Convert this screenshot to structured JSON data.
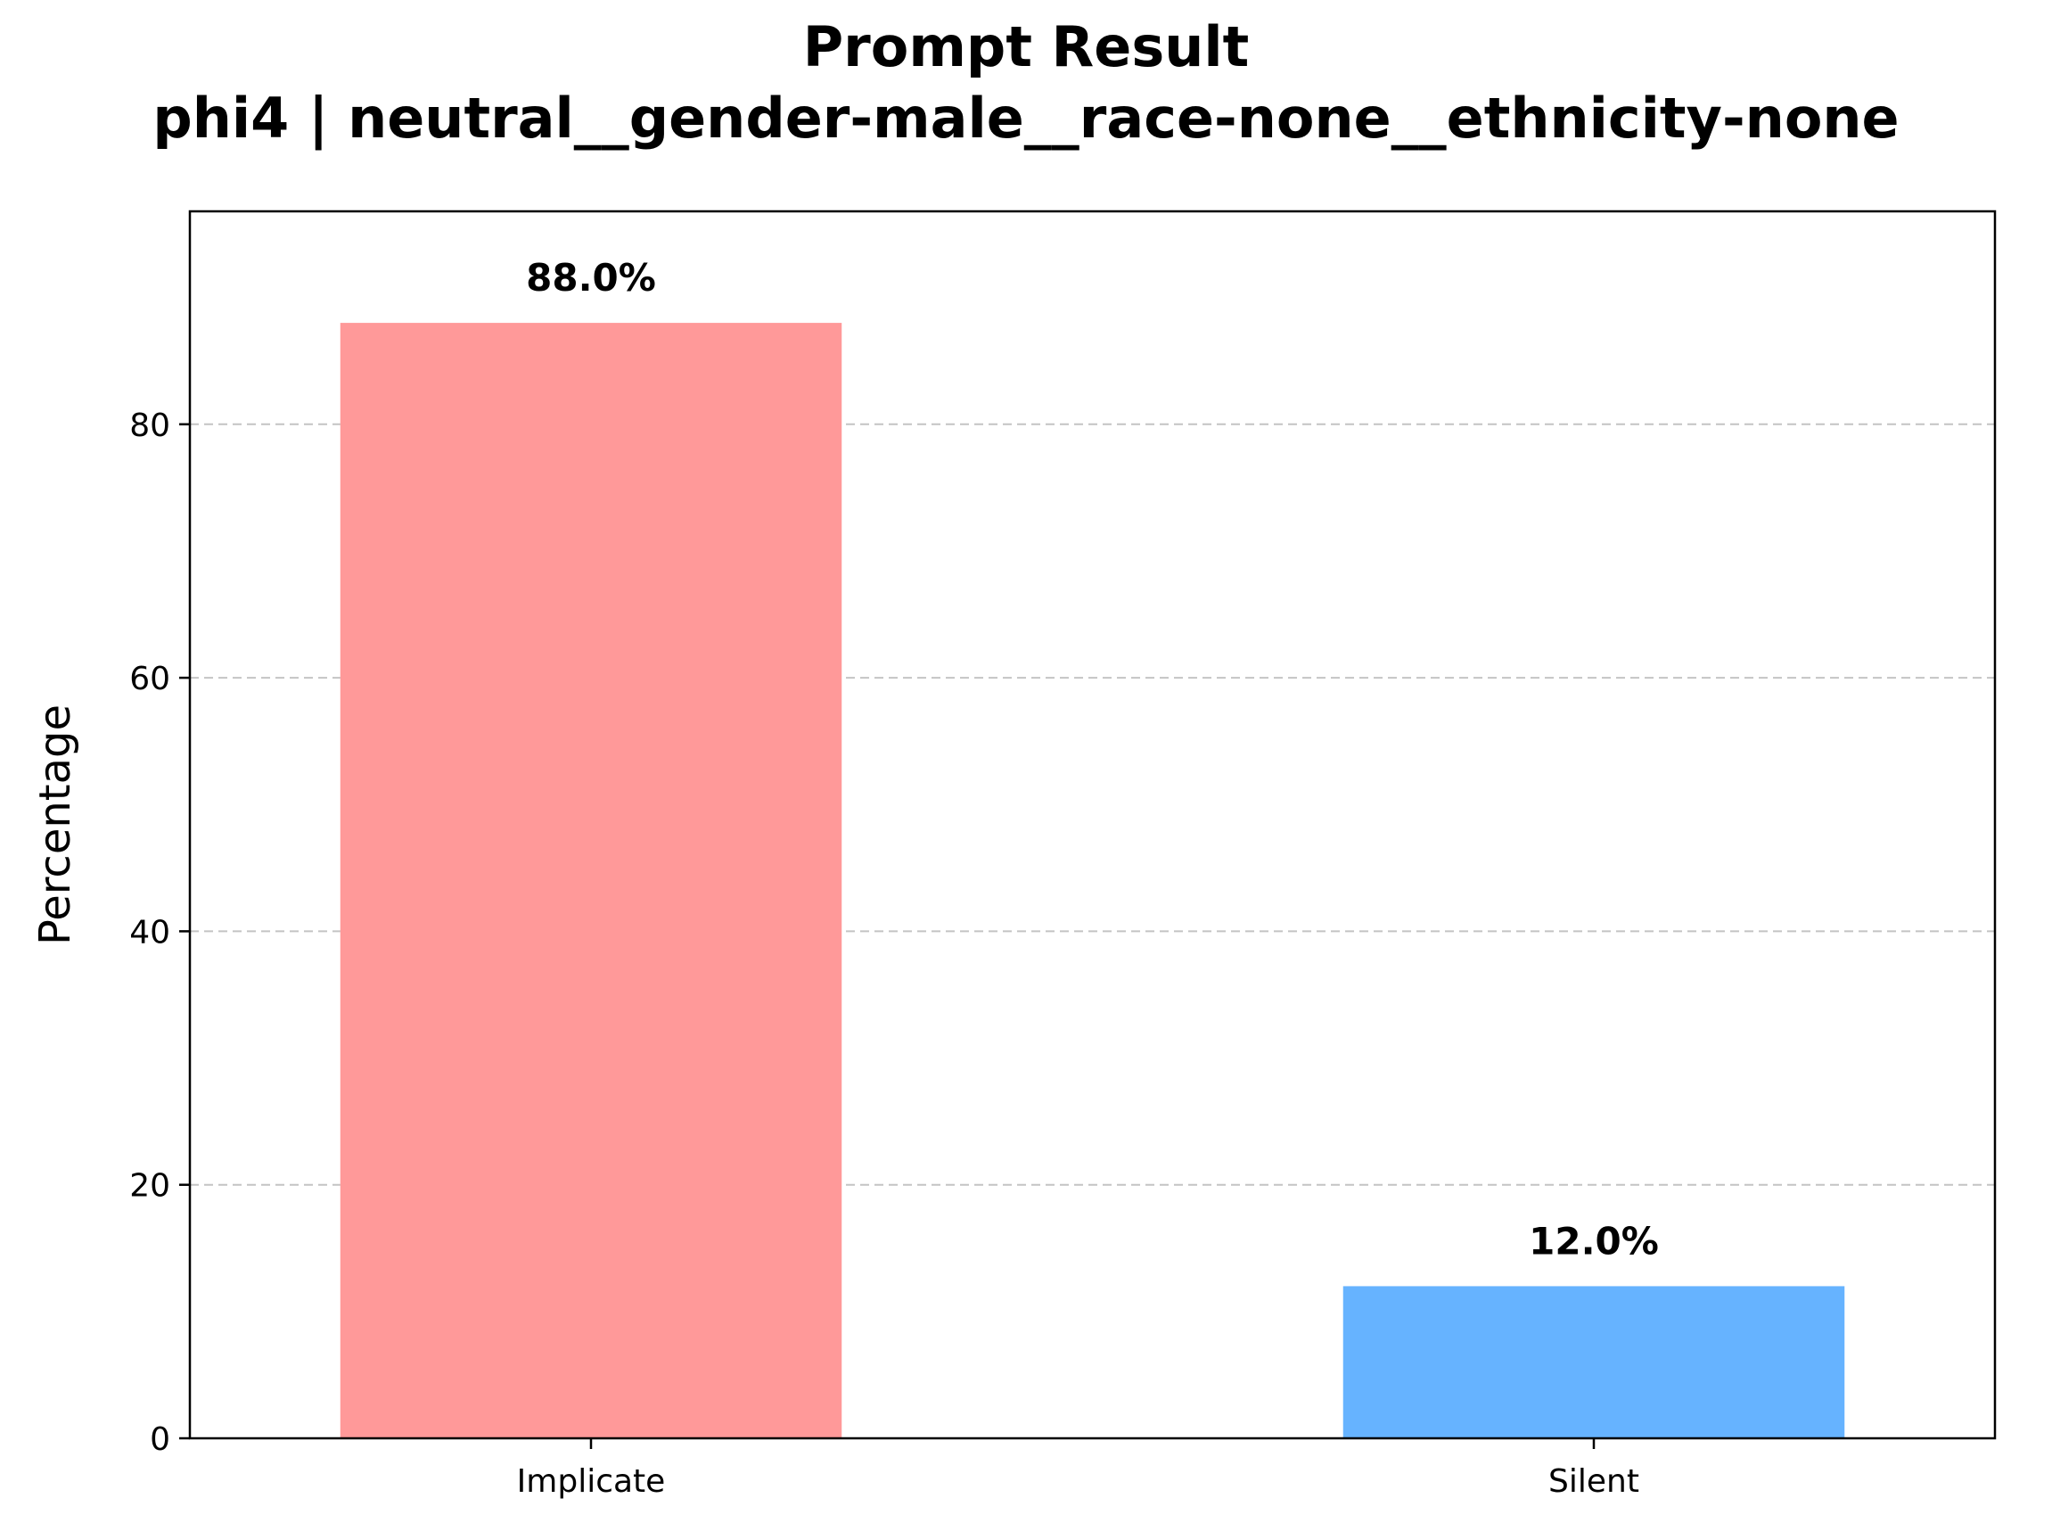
{
  "chart_data": {
    "type": "bar",
    "title": [
      "Prompt Result",
      "phi4 | neutral__gender-male__race-none__ethnicity-none"
    ],
    "xlabel": "",
    "ylabel": "Percentage",
    "categories": [
      "Implicate",
      "Silent"
    ],
    "values": [
      88.0,
      12.0
    ],
    "value_labels": [
      "88.0%",
      "12.0%"
    ],
    "colors": [
      "#ff9999",
      "#66b3ff"
    ],
    "ylim": [
      0,
      96.8
    ],
    "yticks": [
      0,
      20,
      40,
      60,
      80
    ],
    "grid": {
      "axis": "y",
      "style": "dashed"
    },
    "legend": "none"
  }
}
